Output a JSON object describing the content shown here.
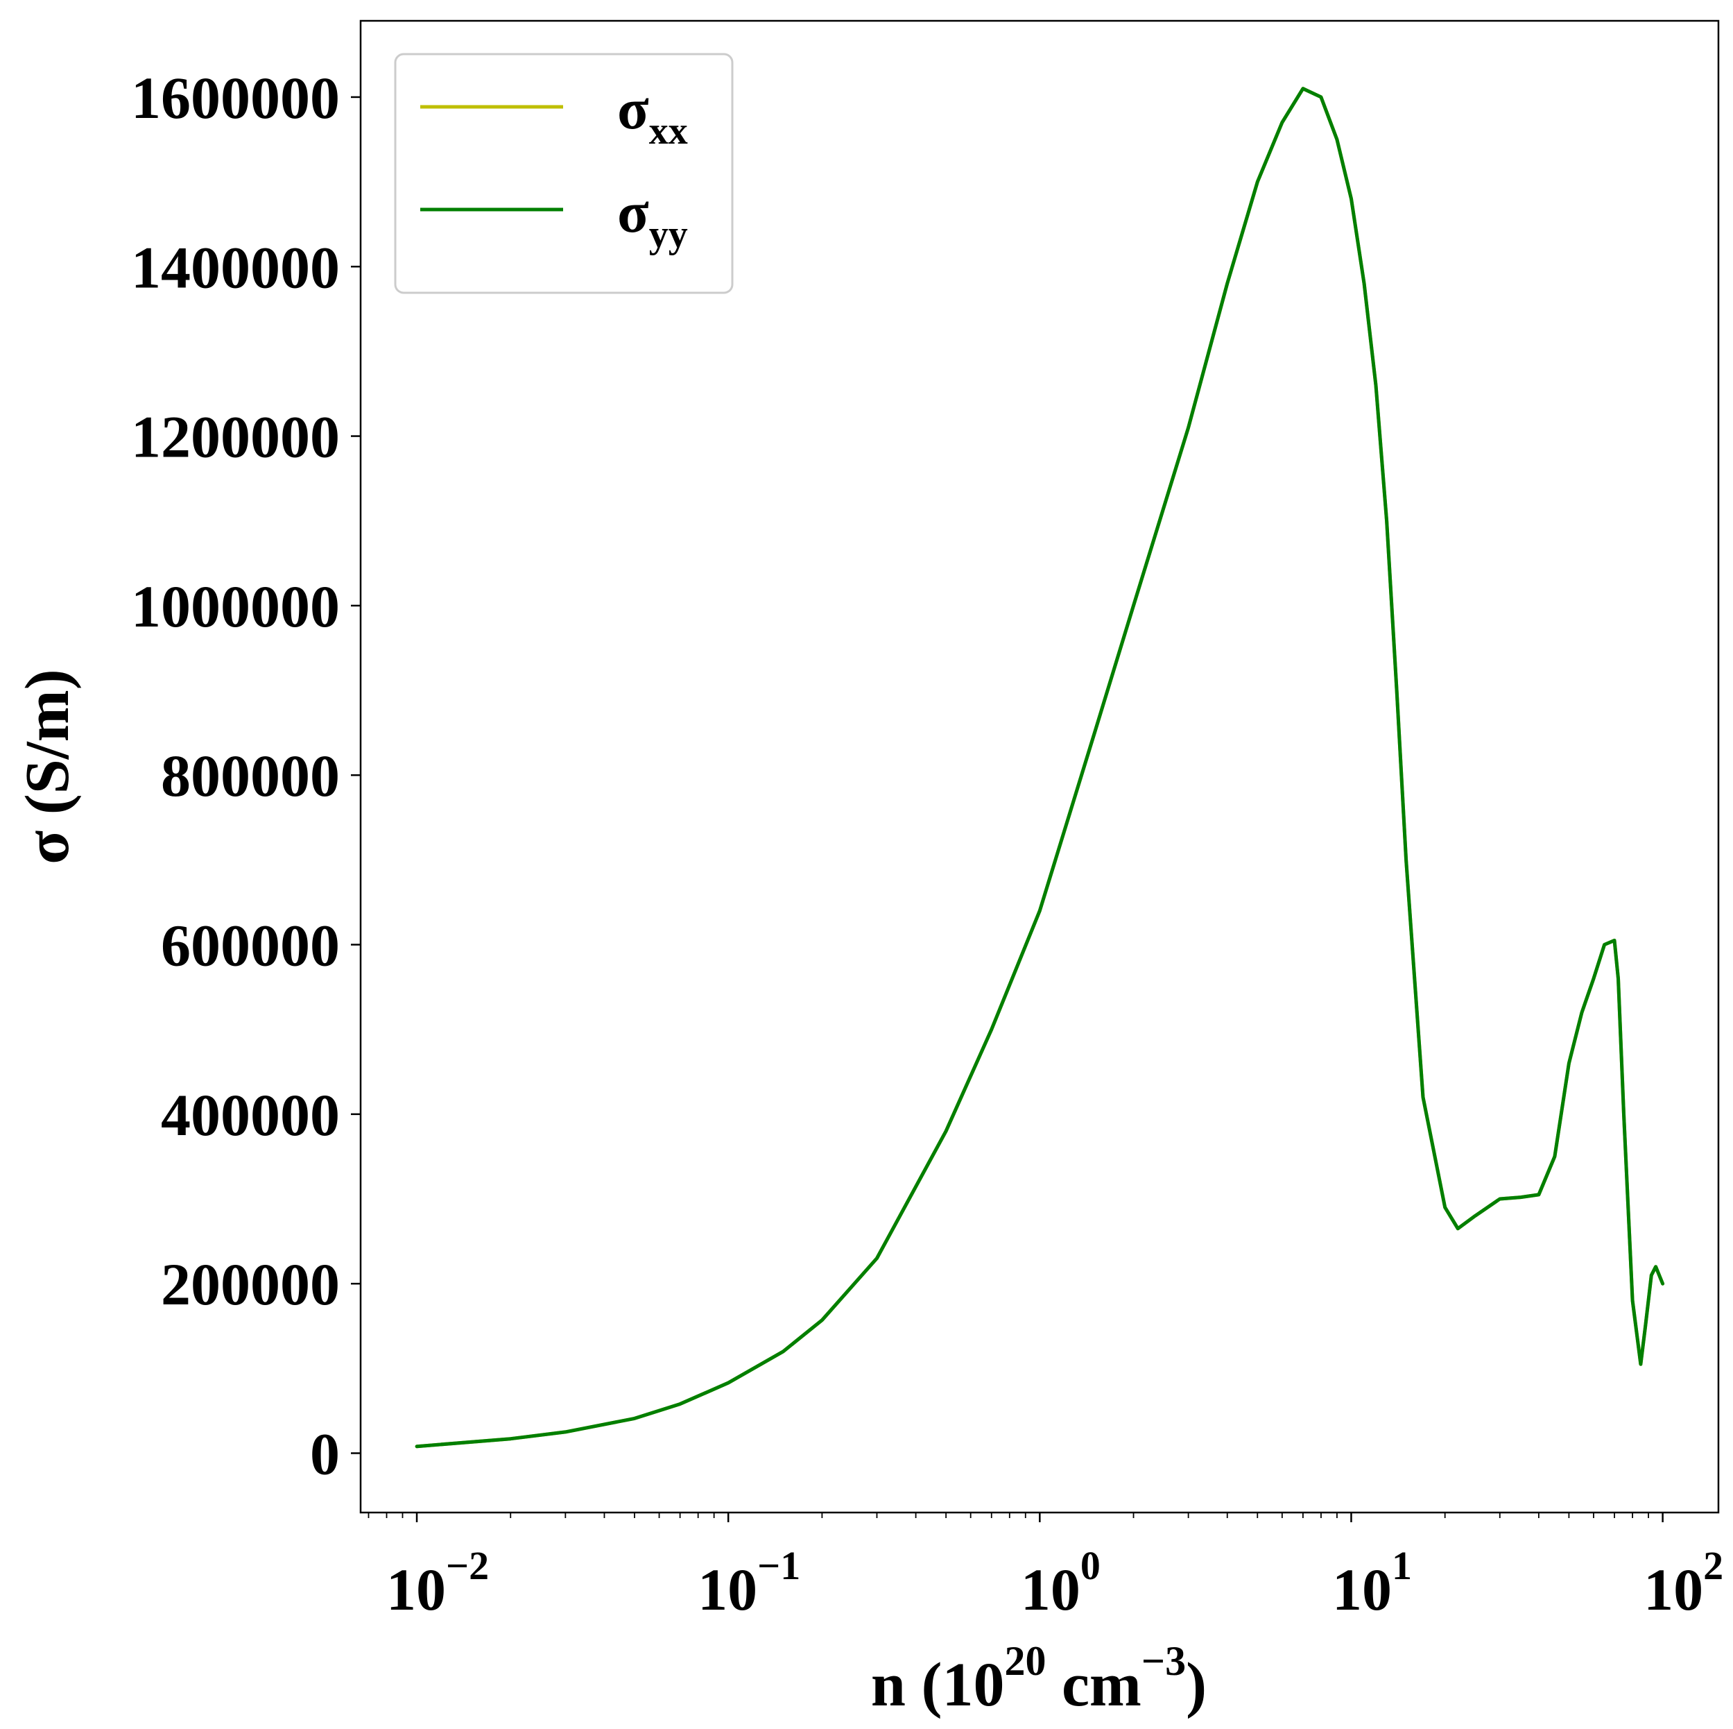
{
  "chart_data": {
    "type": "line",
    "xlabel": "n (10",
    "xlabel_exp": "20",
    "xlabel_unit": " cm",
    "xlabel_unit_exp": "−3",
    "xlabel_close": ")",
    "ylabel": "σ (S/m)",
    "x_scale": "log",
    "xlim": [
      0.0066,
      151
    ],
    "ylim": [
      -70000,
      1690000
    ],
    "y_ticks": [
      "0",
      "200000",
      "400000",
      "600000",
      "800000",
      "1000000",
      "1200000",
      "1400000",
      "1600000"
    ],
    "y_tick_values": [
      0,
      200000,
      400000,
      600000,
      800000,
      1000000,
      1200000,
      1400000,
      1600000
    ],
    "x_ticks": [
      {
        "value": 0.01,
        "base": "10",
        "exp": "−2"
      },
      {
        "value": 0.1,
        "base": "10",
        "exp": "−1"
      },
      {
        "value": 1,
        "base": "10",
        "exp": "0"
      },
      {
        "value": 10,
        "base": "10",
        "exp": "1"
      },
      {
        "value": 100,
        "base": "10",
        "exp": "2"
      }
    ],
    "legend": {
      "position": "top-left",
      "entries": [
        {
          "symbol": "σ",
          "sub": "xx",
          "color": "#bfbf00"
        },
        {
          "symbol": "σ",
          "sub": "yy",
          "color": "#007f00"
        }
      ]
    },
    "series": [
      {
        "name": "σxx",
        "color": "#bfbf00",
        "x": [
          0.01,
          0.02,
          0.03,
          0.05,
          0.07,
          0.1,
          0.15,
          0.2,
          0.3,
          0.5,
          0.7,
          1.0,
          1.5,
          2.0,
          3.0,
          4.0,
          5.0,
          6.0,
          7.0,
          8.0,
          9.0,
          10.0,
          11.0,
          12.0,
          13.0,
          14.0,
          15.0,
          17.0,
          20.0,
          22.0,
          25.0,
          30.0,
          35.0,
          40.0,
          45.0,
          50.0,
          55.0,
          60.0,
          65.0,
          70.0,
          72.0,
          75.0,
          80.0,
          85.0,
          88.0,
          92.0,
          95.0,
          100.0
        ],
        "y": [
          8000,
          17000,
          25000,
          41000,
          58000,
          83000,
          120000,
          157000,
          230000,
          380000,
          500000,
          640000,
          850000,
          1000000,
          1210000,
          1380000,
          1500000,
          1570000,
          1610000,
          1600000,
          1550000,
          1480000,
          1380000,
          1260000,
          1100000,
          900000,
          700000,
          420000,
          290000,
          265000,
          280000,
          300000,
          302000,
          305000,
          350000,
          460000,
          520000,
          560000,
          600000,
          605000,
          560000,
          400000,
          180000,
          105000,
          150000,
          210000,
          220000,
          200000
        ]
      },
      {
        "name": "σyy",
        "color": "#007f00",
        "x": [
          0.01,
          0.02,
          0.03,
          0.05,
          0.07,
          0.1,
          0.15,
          0.2,
          0.3,
          0.5,
          0.7,
          1.0,
          1.5,
          2.0,
          3.0,
          4.0,
          5.0,
          6.0,
          7.0,
          8.0,
          9.0,
          10.0,
          11.0,
          12.0,
          13.0,
          14.0,
          15.0,
          17.0,
          20.0,
          22.0,
          25.0,
          30.0,
          35.0,
          40.0,
          45.0,
          50.0,
          55.0,
          60.0,
          65.0,
          70.0,
          72.0,
          75.0,
          80.0,
          85.0,
          88.0,
          92.0,
          95.0,
          100.0
        ],
        "y": [
          8000,
          17000,
          25000,
          41000,
          58000,
          83000,
          120000,
          157000,
          230000,
          380000,
          500000,
          640000,
          850000,
          1000000,
          1210000,
          1380000,
          1500000,
          1570000,
          1610000,
          1600000,
          1550000,
          1480000,
          1380000,
          1260000,
          1100000,
          900000,
          700000,
          420000,
          290000,
          265000,
          280000,
          300000,
          302000,
          305000,
          350000,
          460000,
          520000,
          560000,
          600000,
          605000,
          560000,
          400000,
          180000,
          105000,
          150000,
          210000,
          220000,
          200000
        ]
      }
    ]
  }
}
